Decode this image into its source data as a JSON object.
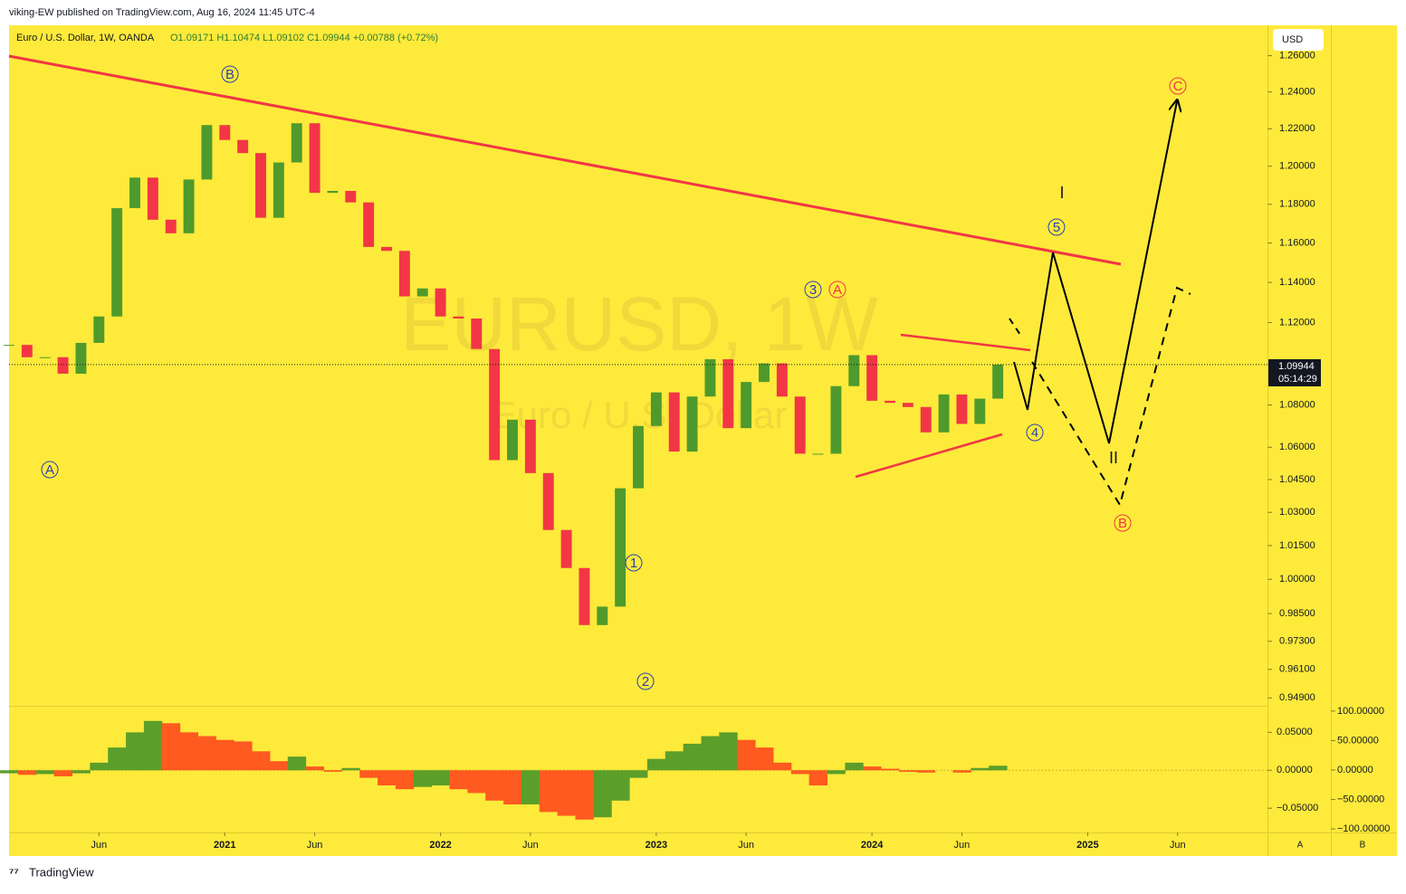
{
  "header": {
    "publisher": "viking-EW published on TradingView.com, Aug 16, 2024 11:45 UTC-4",
    "footer": "TradingView",
    "currency_button": "USD",
    "scale_buttons": [
      "A",
      "B"
    ]
  },
  "chart_data": {
    "type": "candlestick",
    "legend": "Euro / U.S. Dollar, 1W, OANDA",
    "ohlc_text": "O1.09171 H1.10474 L1.09102 C1.09944 +0.00788 (+0.72%)",
    "watermark": "EURUSD, 1W",
    "watermark_sub": "Euro / U.S. Dollar",
    "last_price": {
      "value": 1.09944,
      "label": "1.09944"
    },
    "countdown": "05:14:29",
    "x": [
      "2020-01",
      "2020-02",
      "2020-03",
      "2020-04",
      "2020-05",
      "2020-06",
      "2020-07",
      "2020-08",
      "2020-09",
      "2020-10",
      "2020-11",
      "2020-12",
      "2021-01",
      "2021-02",
      "2021-03",
      "2021-04",
      "2021-05",
      "2021-06",
      "2021-07",
      "2021-08",
      "2021-09",
      "2021-10",
      "2021-11",
      "2021-12",
      "2022-01",
      "2022-02",
      "2022-03",
      "2022-04",
      "2022-05",
      "2022-06",
      "2022-07",
      "2022-08",
      "2022-09",
      "2022-10",
      "2022-11",
      "2022-12",
      "2023-01",
      "2023-02",
      "2023-03",
      "2023-04",
      "2023-05",
      "2023-06",
      "2023-07",
      "2023-08",
      "2023-09",
      "2023-10",
      "2023-11",
      "2023-12",
      "2024-01",
      "2024-02",
      "2024-03",
      "2024-04",
      "2024-05",
      "2024-06",
      "2024-07",
      "2024-08"
    ],
    "values": [
      1.109,
      1.103,
      1.103,
      1.095,
      1.11,
      1.123,
      1.178,
      1.194,
      1.172,
      1.165,
      1.193,
      1.222,
      1.214,
      1.207,
      1.173,
      1.202,
      1.223,
      1.186,
      1.187,
      1.181,
      1.158,
      1.156,
      1.133,
      1.137,
      1.123,
      1.122,
      1.107,
      1.054,
      1.073,
      1.048,
      1.022,
      1.005,
      0.98,
      0.988,
      1.041,
      1.07,
      1.086,
      1.058,
      1.084,
      1.102,
      1.069,
      1.091,
      1.1,
      1.084,
      1.057,
      1.057,
      1.089,
      1.104,
      1.082,
      1.081,
      1.079,
      1.067,
      1.085,
      1.071,
      1.083,
      1.0994
    ],
    "up_color": "#4f9a2c",
    "down_color": "#f23645",
    "log_scale": true,
    "xlim": [
      "2020-01",
      "2025-11"
    ],
    "xticks": [
      {
        "value": "2020-06",
        "label": "Jun"
      },
      {
        "value": "2021-01",
        "label": "2021"
      },
      {
        "value": "2021-06",
        "label": "Jun"
      },
      {
        "value": "2022-01",
        "label": "2022"
      },
      {
        "value": "2022-06",
        "label": "Jun"
      },
      {
        "value": "2023-01",
        "label": "2023"
      },
      {
        "value": "2023-06",
        "label": "Jun"
      },
      {
        "value": "2024-01",
        "label": "2024"
      },
      {
        "value": "2024-06",
        "label": "Jun"
      },
      {
        "value": "2025-01",
        "label": "2025"
      },
      {
        "value": "2025-06",
        "label": "Jun"
      }
    ],
    "ylim": [
      0.9457,
      1.277
    ],
    "yticks": [
      {
        "value": 1.26,
        "label": "1.26000"
      },
      {
        "value": 1.24,
        "label": "1.24000"
      },
      {
        "value": 1.22,
        "label": "1.22000"
      },
      {
        "value": 1.2,
        "label": "1.20000"
      },
      {
        "value": 1.18,
        "label": "1.18000"
      },
      {
        "value": 1.16,
        "label": "1.16000"
      },
      {
        "value": 1.14,
        "label": "1.14000"
      },
      {
        "value": 1.12,
        "label": "1.12000"
      },
      {
        "value": 1.08,
        "label": "1.08000"
      },
      {
        "value": 1.06,
        "label": "1.06000"
      },
      {
        "value": 1.045,
        "label": "1.04500"
      },
      {
        "value": 1.03,
        "label": "1.03000"
      },
      {
        "value": 1.015,
        "label": "1.01500"
      },
      {
        "value": 1,
        "label": "1.00000"
      },
      {
        "value": 0.985,
        "label": "0.98500"
      },
      {
        "value": 0.973,
        "label": "0.97300"
      },
      {
        "value": 0.961,
        "label": "0.96100"
      },
      {
        "value": 0.949,
        "label": "0.94900"
      }
    ],
    "wave_labels": [
      "A",
      "B",
      "1",
      "2",
      "3",
      "A",
      "4",
      "5",
      "B",
      "C",
      "I",
      "II"
    ],
    "oscillator": {
      "values": [
        -0.004,
        -0.006,
        -0.005,
        -0.008,
        -0.004,
        0.01,
        0.03,
        0.05,
        0.065,
        0.062,
        0.05,
        0.045,
        0.04,
        0.038,
        0.025,
        0.012,
        0.018,
        0.005,
        -0.002,
        0.003,
        -0.01,
        -0.02,
        -0.025,
        -0.022,
        -0.02,
        -0.025,
        -0.03,
        -0.04,
        -0.045,
        -0.045,
        -0.055,
        -0.06,
        -0.065,
        -0.062,
        -0.04,
        -0.01,
        0.015,
        0.025,
        0.035,
        0.045,
        0.05,
        0.04,
        0.03,
        0.01,
        -0.005,
        -0.02,
        -0.005,
        0.01,
        0.005,
        0.002,
        -0.002,
        -0.003,
        0,
        -0.003,
        0.003,
        0.006
      ],
      "rise_color": "#5b9e2a",
      "fall_color": "#ff5a1f",
      "ylim": [
        -0.082,
        0.085
      ],
      "yticks": [
        {
          "value": 0.05,
          "label": "0.05000"
        },
        {
          "value": 0,
          "label": "0.00000"
        },
        {
          "value": -0.05,
          "label": "−0.05000"
        }
      ],
      "y2lim": [
        -106,
        109
      ],
      "y2ticks": [
        {
          "value": 100,
          "label": "100.00000"
        },
        {
          "value": 50,
          "label": "50.00000"
        },
        {
          "value": 0,
          "label": "0.00000"
        },
        {
          "value": -50,
          "label": "−50.00000"
        },
        {
          "value": -100,
          "label": "−100.00000"
        }
      ]
    }
  }
}
